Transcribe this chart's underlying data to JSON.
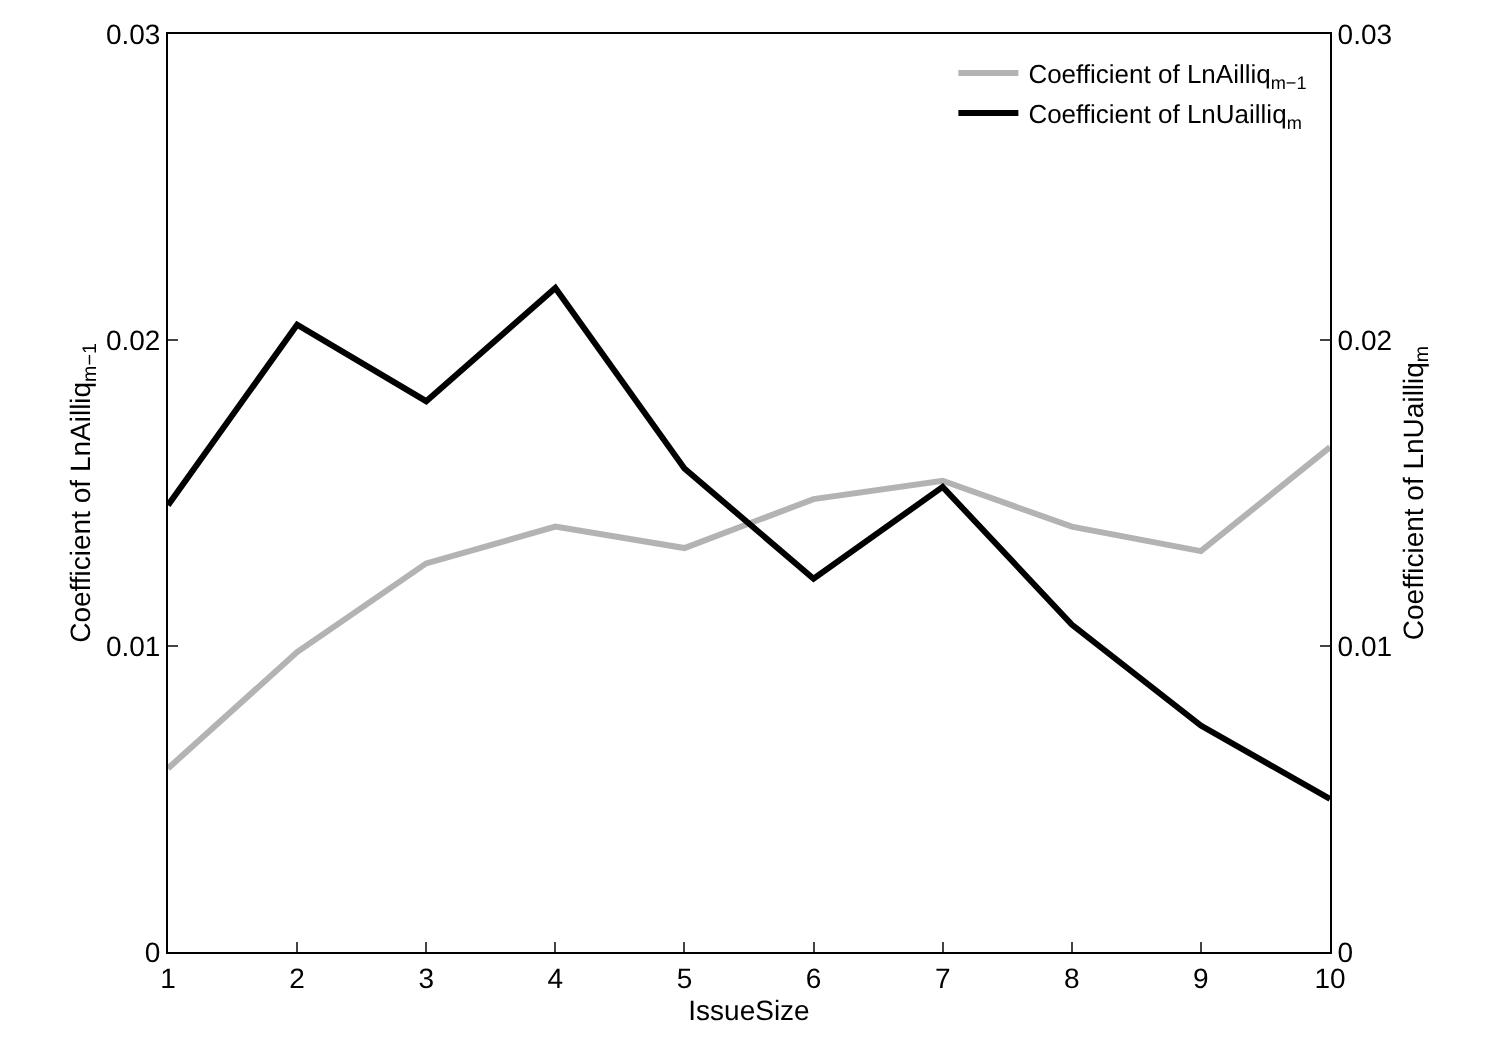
{
  "chart_data": {
    "type": "line",
    "xlabel": "IssueSize",
    "ylabel": "Coefficient of LnAilliq$_{m−1}$",
    "y2label": "Coefficient of LnUailliq$_{m}$",
    "x": [
      1,
      2,
      3,
      4,
      5,
      6,
      7,
      8,
      9,
      10
    ],
    "xlim": [
      1,
      10
    ],
    "xticks": [
      1,
      2,
      3,
      4,
      5,
      6,
      7,
      8,
      9,
      10
    ],
    "ylim": [
      0,
      0.03
    ],
    "yticks": [
      0,
      0.01,
      0.02,
      0.03
    ],
    "y2lim": [
      0,
      0.03
    ],
    "y2ticks": [
      0,
      0.01,
      0.02,
      0.03
    ],
    "series": [
      {
        "name": "Coefficient of LnAilliq$_{m−1}$",
        "color": "#b3b3b3",
        "values": [
          0.006,
          0.0098,
          0.0127,
          0.0139,
          0.0132,
          0.0148,
          0.0154,
          0.0139,
          0.0131,
          0.0165
        ]
      },
      {
        "name": "Coefficient of LnUailliq$_{m}$",
        "color": "#000000",
        "axis": "y2",
        "values": [
          0.0146,
          0.0205,
          0.018,
          0.0217,
          0.0158,
          0.0122,
          0.0152,
          0.0107,
          0.0074,
          0.005
        ]
      }
    ],
    "grid": false,
    "legend": "top right",
    "marker": "none",
    "line_style": "solid"
  }
}
